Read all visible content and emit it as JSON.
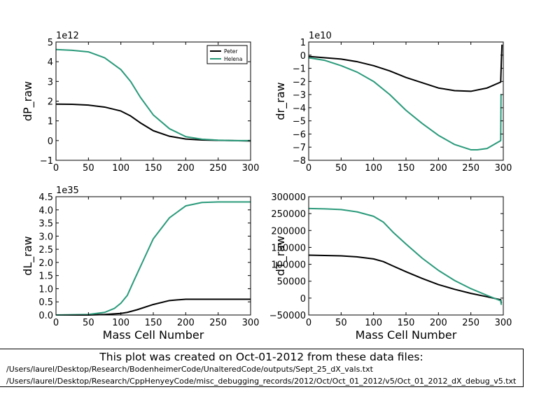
{
  "colors": {
    "Peter": "#000000",
    "Helena": "#2a9a7a"
  },
  "chart_data": [
    {
      "type": "line",
      "xlabel": "",
      "ylabel": "dP_raw",
      "offset_text": "1e12",
      "xlim": [
        0,
        300
      ],
      "ylim": [
        -1,
        5
      ],
      "xticks": [
        0,
        50,
        100,
        150,
        200,
        250,
        300
      ],
      "yticks": [
        -1,
        0,
        1,
        2,
        3,
        4,
        5
      ],
      "legend": "top-right",
      "series": [
        {
          "name": "Peter",
          "x": [
            0,
            25,
            50,
            75,
            100,
            115,
            130,
            150,
            175,
            200,
            225,
            250,
            275,
            300
          ],
          "y": [
            1.85,
            1.84,
            1.8,
            1.7,
            1.5,
            1.25,
            0.9,
            0.5,
            0.22,
            0.08,
            0.03,
            0.01,
            0.0,
            -0.02
          ]
        },
        {
          "name": "Helena",
          "x": [
            0,
            25,
            50,
            75,
            100,
            115,
            130,
            150,
            175,
            200,
            225,
            250,
            275,
            300
          ],
          "y": [
            4.62,
            4.58,
            4.5,
            4.2,
            3.6,
            3.0,
            2.2,
            1.3,
            0.6,
            0.2,
            0.07,
            0.02,
            0.0,
            0.0
          ]
        }
      ]
    },
    {
      "type": "line",
      "xlabel": "",
      "ylabel": "dr_raw",
      "offset_text": "1e10",
      "xlim": [
        0,
        300
      ],
      "ylim": [
        -8,
        1
      ],
      "xticks": [
        0,
        50,
        100,
        150,
        200,
        250,
        300
      ],
      "yticks": [
        -8,
        -7,
        -6,
        -5,
        -4,
        -3,
        -2,
        -1,
        0,
        1
      ],
      "series": [
        {
          "name": "Peter",
          "x": [
            0,
            25,
            50,
            75,
            100,
            125,
            150,
            175,
            200,
            225,
            250,
            275,
            296,
            297,
            298
          ],
          "y": [
            -0.1,
            -0.2,
            -0.3,
            -0.5,
            -0.8,
            -1.2,
            -1.7,
            -2.1,
            -2.5,
            -2.7,
            -2.75,
            -2.5,
            -2.05,
            -0.5,
            0.8
          ]
        },
        {
          "name": "Helena",
          "x": [
            0,
            25,
            50,
            75,
            100,
            125,
            150,
            175,
            200,
            225,
            250,
            260,
            275,
            296,
            296.5,
            297
          ],
          "y": [
            -0.2,
            -0.4,
            -0.8,
            -1.3,
            -2.0,
            -3.0,
            -4.2,
            -5.2,
            -6.1,
            -6.8,
            -7.2,
            -7.2,
            -7.1,
            -6.5,
            -3.0,
            -3.0
          ]
        }
      ]
    },
    {
      "type": "line",
      "xlabel": "Mass Cell Number",
      "ylabel": "dL_raw",
      "offset_text": "1e35",
      "xlim": [
        0,
        300
      ],
      "ylim": [
        0,
        4.5
      ],
      "xticks": [
        0,
        50,
        100,
        150,
        200,
        250,
        300
      ],
      "yticks": [
        0.0,
        0.5,
        1.0,
        1.5,
        2.0,
        2.5,
        3.0,
        3.5,
        4.0,
        4.5
      ],
      "series": [
        {
          "name": "Peter",
          "x": [
            0,
            50,
            75,
            100,
            110,
            125,
            150,
            175,
            200,
            225,
            250,
            275,
            300
          ],
          "y": [
            0,
            0,
            0.02,
            0.06,
            0.1,
            0.2,
            0.4,
            0.55,
            0.6,
            0.6,
            0.6,
            0.6,
            0.6
          ]
        },
        {
          "name": "Helena",
          "x": [
            0,
            50,
            75,
            90,
            100,
            110,
            120,
            135,
            150,
            175,
            200,
            225,
            250,
            275,
            300
          ],
          "y": [
            0,
            0.02,
            0.1,
            0.25,
            0.45,
            0.75,
            1.3,
            2.1,
            2.9,
            3.7,
            4.15,
            4.28,
            4.3,
            4.3,
            4.3
          ]
        }
      ]
    },
    {
      "type": "line",
      "xlabel": "Mass Cell Number",
      "ylabel": "dT_raw",
      "offset_text": "",
      "xlim": [
        0,
        300
      ],
      "ylim": [
        -50000,
        300000
      ],
      "xticks": [
        0,
        50,
        100,
        150,
        200,
        250,
        300
      ],
      "yticks": [
        -50000,
        0,
        50000,
        100000,
        150000,
        200000,
        250000,
        300000
      ],
      "series": [
        {
          "name": "Peter",
          "x": [
            0,
            50,
            75,
            100,
            115,
            130,
            150,
            175,
            200,
            225,
            250,
            275,
            296,
            297
          ],
          "y": [
            127000,
            125000,
            122000,
            116000,
            108000,
            95000,
            78000,
            58000,
            40000,
            26000,
            14000,
            4000,
            -5000,
            -15000
          ]
        },
        {
          "name": "Helena",
          "x": [
            0,
            25,
            50,
            75,
            100,
            115,
            130,
            150,
            175,
            200,
            225,
            250,
            275,
            296,
            297
          ],
          "y": [
            265000,
            264000,
            262000,
            255000,
            242000,
            225000,
            195000,
            160000,
            118000,
            82000,
            52000,
            28000,
            8000,
            -8000,
            -20000
          ]
        }
      ]
    }
  ],
  "caption": {
    "heading": "This plot was created on Oct-01-2012 from these data files:",
    "files": [
      "/Users/laurel/Desktop/Research/BodenheimerCode/UnalteredCode/outputs/Sept_25_dX_vals.txt",
      "/Users/laurel/Desktop/Research/CppHenyeyCode/misc_debugging_records/2012/Oct/Oct_01_2012/v5/Oct_01_2012_dX_debug_v5.txt"
    ]
  }
}
